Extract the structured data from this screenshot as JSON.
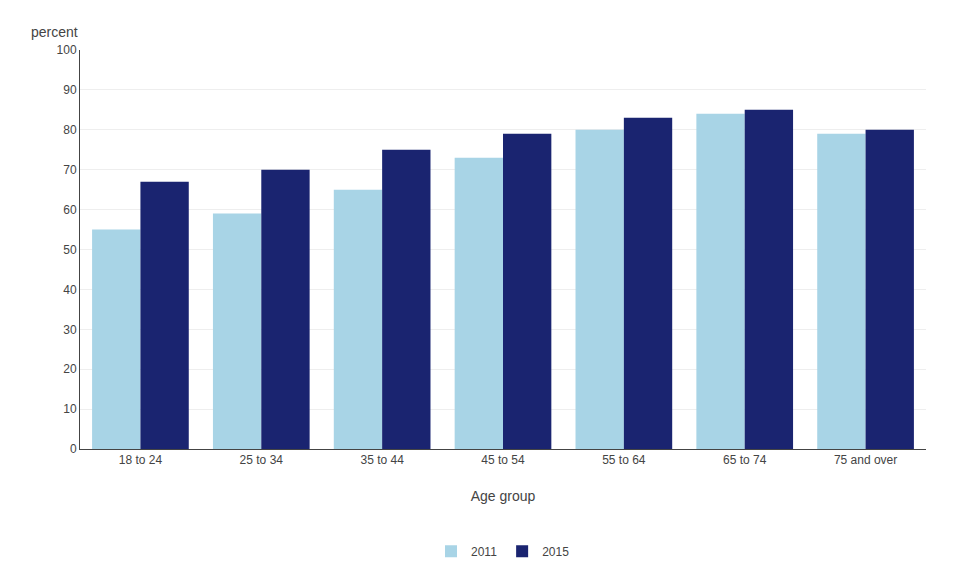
{
  "chart_data": {
    "type": "bar",
    "xlabel": "Age group",
    "ylabel": "percent",
    "categories": [
      "18 to 24",
      "25 to 34",
      "35 to 44",
      "45 to 54",
      "55 to 64",
      "65 to 74",
      "75 and over"
    ],
    "series": [
      {
        "name": "2011",
        "color": "#a8d4e6",
        "values": [
          55,
          59,
          65,
          73,
          80,
          84,
          79
        ]
      },
      {
        "name": "2015",
        "color": "#1a2470",
        "values": [
          67,
          70,
          75,
          79,
          83,
          85,
          80
        ]
      }
    ],
    "ylim": [
      0,
      100
    ],
    "yticks": [
      0,
      10,
      20,
      30,
      40,
      50,
      60,
      70,
      80,
      90,
      100
    ],
    "grid": true,
    "legend": "bottom"
  }
}
